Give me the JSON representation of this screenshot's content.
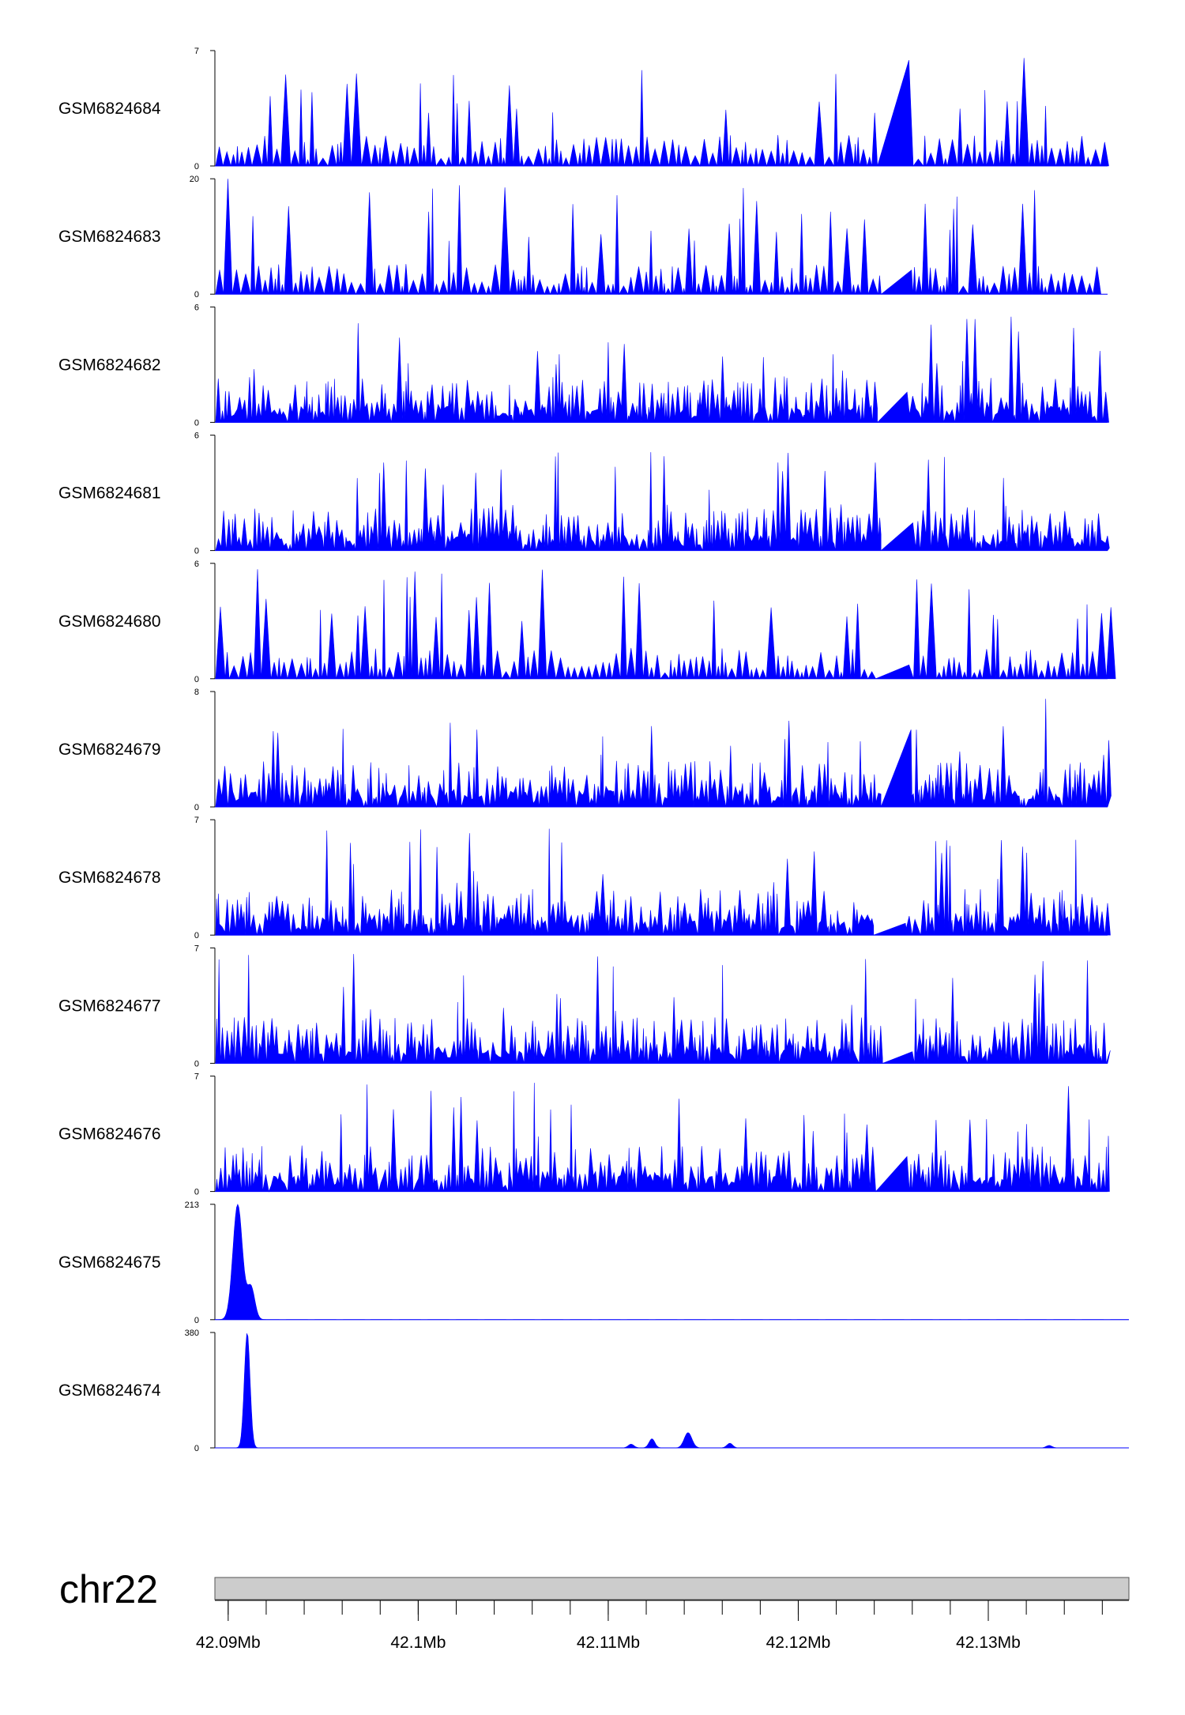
{
  "chart_data": {
    "type": "area",
    "title": "",
    "xlabel": "",
    "ylabel": "",
    "xlim": [
      42089300,
      42137400
    ],
    "colors": {
      "signal": "#0000ff",
      "chromosome": "#cccccc",
      "axis": "#000000"
    },
    "tracks": [
      {
        "name": "GSM6824684",
        "ymax": "7",
        "ymin": "0",
        "peak_value": 7,
        "pattern": "sparse"
      },
      {
        "name": "GSM6824683",
        "ymax": "20",
        "ymin": "0",
        "peak_value": 20,
        "pattern": "sparse"
      },
      {
        "name": "GSM6824682",
        "ymax": "6",
        "ymin": "0",
        "peak_value": 6,
        "pattern": "dense"
      },
      {
        "name": "GSM6824681",
        "ymax": "6",
        "ymin": "0",
        "peak_value": 6,
        "pattern": "dense"
      },
      {
        "name": "GSM6824680",
        "ymax": "6",
        "ymin": "0",
        "peak_value": 6,
        "pattern": "sparse"
      },
      {
        "name": "GSM6824679",
        "ymax": "8",
        "ymin": "0",
        "peak_value": 8,
        "pattern": "dense"
      },
      {
        "name": "GSM6824678",
        "ymax": "7",
        "ymin": "0",
        "peak_value": 7,
        "pattern": "dense"
      },
      {
        "name": "GSM6824677",
        "ymax": "7",
        "ymin": "0",
        "peak_value": 7,
        "pattern": "dense"
      },
      {
        "name": "GSM6824676",
        "ymax": "7",
        "ymin": "0",
        "peak_value": 7,
        "pattern": "dense"
      },
      {
        "name": "GSM6824675",
        "ymax": "213",
        "ymin": "0",
        "peak_value": 213,
        "pattern": "peaked",
        "peaks": [
          [
            42090500,
            213,
            250
          ],
          [
            42091200,
            60,
            200
          ]
        ]
      },
      {
        "name": "GSM6824674",
        "ymax": "380",
        "ymin": "0",
        "peak_value": 380,
        "pattern": "peaked",
        "peaks": [
          [
            42091000,
            380,
            150
          ],
          [
            42111200,
            12,
            150
          ],
          [
            42112300,
            30,
            150
          ],
          [
            42114200,
            50,
            200
          ],
          [
            42116400,
            15,
            150
          ],
          [
            42133200,
            8,
            150
          ]
        ]
      }
    ],
    "chromosome": {
      "name": "chr22",
      "ticks": [
        {
          "pos": 42090000,
          "label": "42.09Mb"
        },
        {
          "pos": 42100000,
          "label": "42.1Mb"
        },
        {
          "pos": 42110000,
          "label": "42.11Mb"
        },
        {
          "pos": 42120000,
          "label": "42.12Mb"
        },
        {
          "pos": 42130000,
          "label": "42.13Mb"
        }
      ],
      "minor_tick_step": 2000
    }
  }
}
